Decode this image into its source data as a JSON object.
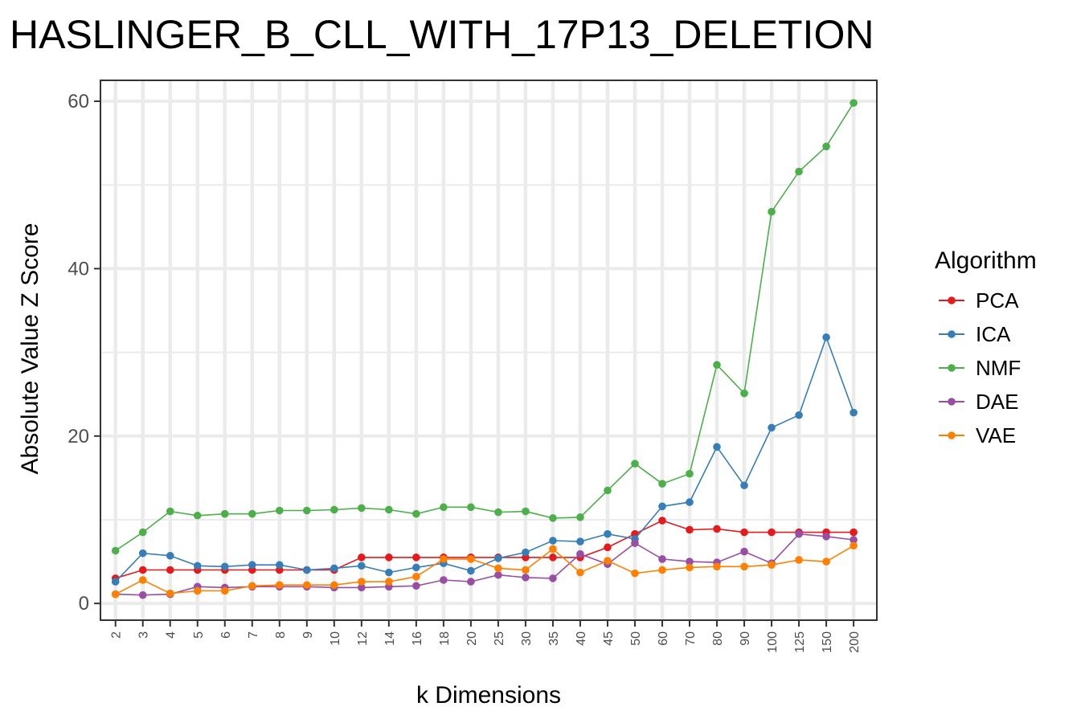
{
  "chart_data": {
    "type": "line",
    "title": "HASLINGER_B_CLL_WITH_17P13_DELETION",
    "xlabel": "k Dimensions",
    "ylabel": "Absolute Value Z Score",
    "categories": [
      "2",
      "3",
      "4",
      "5",
      "6",
      "7",
      "8",
      "9",
      "10",
      "12",
      "14",
      "16",
      "18",
      "20",
      "25",
      "30",
      "35",
      "40",
      "45",
      "50",
      "60",
      "70",
      "80",
      "90",
      "100",
      "125",
      "150",
      "200"
    ],
    "ylim": [
      -2,
      62.5
    ],
    "yticks": [
      "0",
      "20",
      "40",
      "60"
    ],
    "grid": true,
    "legend": {
      "title": "Algorithm",
      "position": "right"
    },
    "series": [
      {
        "name": "PCA",
        "color": "#E41A1C",
        "values": [
          3.0,
          4.0,
          4.0,
          4.0,
          4.0,
          4.0,
          4.0,
          4.0,
          4.0,
          5.5,
          5.5,
          5.5,
          5.5,
          5.5,
          5.5,
          5.5,
          5.5,
          5.5,
          6.7,
          8.3,
          9.9,
          8.8,
          8.9,
          8.5,
          8.5,
          8.5,
          8.5,
          8.5
        ]
      },
      {
        "name": "ICA",
        "color": "#377EB8",
        "values": [
          2.6,
          6.0,
          5.7,
          4.5,
          4.4,
          4.6,
          4.6,
          4.0,
          4.2,
          4.5,
          3.7,
          4.3,
          4.8,
          3.9,
          5.4,
          6.1,
          7.5,
          7.4,
          8.3,
          7.7,
          11.6,
          12.1,
          18.7,
          14.1,
          21.0,
          22.5,
          31.8,
          22.8
        ]
      },
      {
        "name": "NMF",
        "color": "#4DAF4A",
        "values": [
          6.3,
          8.5,
          11.0,
          10.5,
          10.7,
          10.7,
          11.1,
          11.1,
          11.2,
          11.4,
          11.2,
          10.7,
          11.5,
          11.5,
          10.9,
          11.0,
          10.2,
          10.3,
          13.5,
          16.7,
          14.3,
          15.5,
          28.5,
          25.1,
          46.8,
          51.6,
          54.6,
          59.8
        ]
      },
      {
        "name": "DAE",
        "color": "#984EA3",
        "values": [
          1.1,
          1.0,
          1.1,
          2.0,
          1.9,
          2.0,
          2.0,
          2.0,
          1.9,
          1.9,
          2.0,
          2.1,
          2.8,
          2.6,
          3.4,
          3.1,
          3.0,
          5.9,
          4.7,
          7.2,
          5.3,
          5.0,
          4.9,
          6.2,
          4.8,
          8.3,
          8.0,
          7.6
        ]
      },
      {
        "name": "VAE",
        "color": "#FF7F00",
        "values": [
          1.1,
          2.8,
          1.2,
          1.5,
          1.5,
          2.1,
          2.2,
          2.2,
          2.2,
          2.6,
          2.6,
          3.2,
          5.3,
          5.3,
          4.2,
          4.0,
          6.5,
          3.7,
          5.1,
          3.6,
          4.0,
          4.3,
          4.4,
          4.4,
          4.6,
          5.2,
          5.0,
          6.9
        ]
      }
    ]
  }
}
